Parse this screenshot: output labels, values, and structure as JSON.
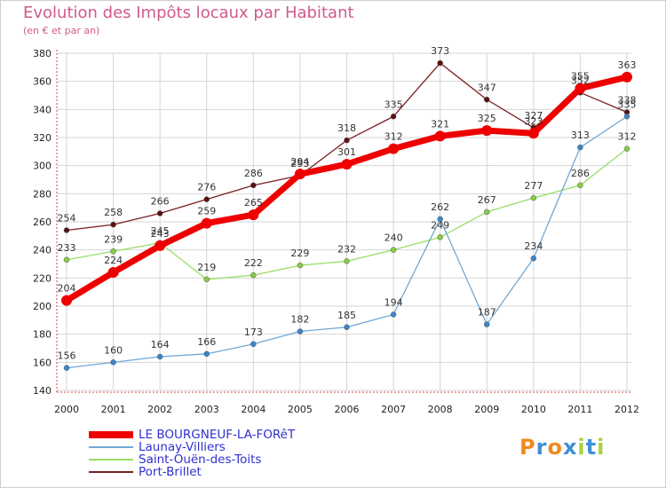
{
  "chart_data": {
    "type": "line",
    "title": "Evolution des Impôts locaux par Habitant",
    "subtitle": "(en € et par an)",
    "categories": [
      "2000",
      "2001",
      "2002",
      "2003",
      "2004",
      "2005",
      "2006",
      "2007",
      "2008",
      "2009",
      "2010",
      "2011",
      "2012"
    ],
    "ylim": [
      140,
      380
    ],
    "yticks": [
      140,
      160,
      180,
      200,
      220,
      240,
      260,
      280,
      300,
      320,
      340,
      360,
      380
    ],
    "grid": true,
    "legend_position": "bottom-left",
    "series": [
      {
        "name": "LE BOURGNEUF-LA-FORêT",
        "color": "#ee0000",
        "values": [
          204,
          224,
          243,
          259,
          265,
          294,
          301,
          312,
          321,
          325,
          323,
          355,
          363
        ]
      },
      {
        "name": "Launay-Villiers",
        "color": "#6fa7d6",
        "values": [
          156,
          160,
          164,
          166,
          173,
          182,
          185,
          194,
          262,
          187,
          234,
          313,
          335
        ]
      },
      {
        "name": "Saint-Ouën-des-Toits",
        "color": "#99dd66",
        "values": [
          233,
          239,
          245,
          219,
          222,
          229,
          232,
          240,
          249,
          267,
          277,
          286,
          312
        ]
      },
      {
        "name": "Port-Brillet",
        "color": "#7a1f1f",
        "values": [
          254,
          258,
          266,
          276,
          286,
          293,
          318,
          335,
          373,
          347,
          327,
          352,
          338
        ]
      }
    ]
  },
  "logo": {
    "text": "Proxiti"
  }
}
